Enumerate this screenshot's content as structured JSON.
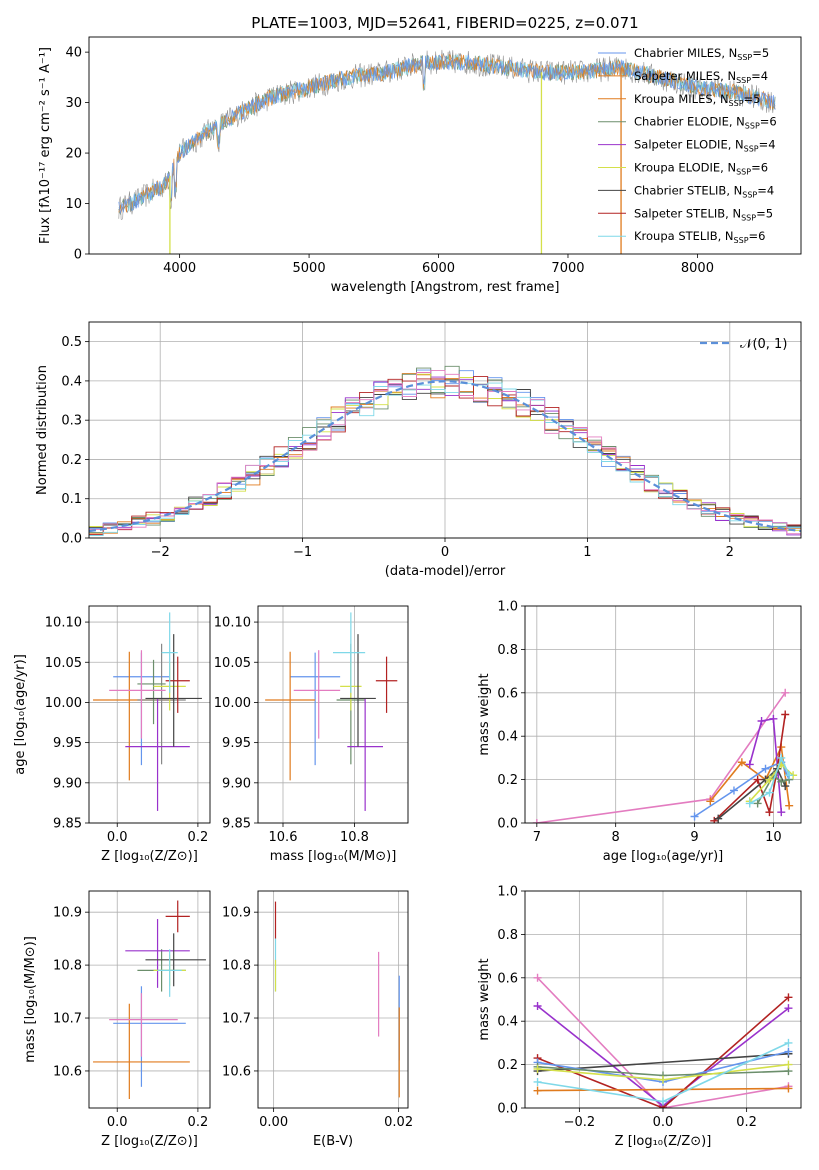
{
  "figure": {
    "title": "PLATE=1003, MJD=52641, FIBERID=0225, z=0.071"
  },
  "colors": [
    "#6495ed",
    "#e07b1e",
    "#e07b1e",
    "#6b8e6b",
    "#9932cc",
    "#d4e04a",
    "#444444",
    "#b22222",
    "#7fd8e8",
    "#e37cc0",
    "#888888"
  ],
  "chart_data": [
    {
      "id": "spectrum",
      "type": "line",
      "title": "PLATE=1003, MJD=52641, FIBERID=0225, z=0.071",
      "xlabel": "wavelength [Angstrom, rest frame]",
      "ylabel": "Flux [fλ10⁻¹⁷ erg cm⁻² s⁻¹ A⁻¹]",
      "xlim": [
        3300,
        8800
      ],
      "ylim": [
        0,
        43
      ],
      "xticks": [
        4000,
        5000,
        6000,
        7000,
        8000
      ],
      "yticks": [
        0,
        10,
        20,
        30,
        40
      ],
      "legend_position": "top-right",
      "legend": [
        {
          "label": "Chabrier MILES, N",
          "sub": "SSP",
          "suffix": "=5",
          "color": "#6495ed"
        },
        {
          "label": "Salpeter MILES, N",
          "sub": "SSP",
          "suffix": "=4",
          "color": "#e07b1e"
        },
        {
          "label": "Kroupa MILES, N",
          "sub": "SSP",
          "suffix": "=5",
          "color": "#e07b1e"
        },
        {
          "label": "Chabrier ELODIE, N",
          "sub": "SSP",
          "suffix": "=6",
          "color": "#6b8e6b"
        },
        {
          "label": "Salpeter ELODIE, N",
          "sub": "SSP",
          "suffix": "=4",
          "color": "#9932cc"
        },
        {
          "label": "Kroupa ELODIE, N",
          "sub": "SSP",
          "suffix": "=6",
          "color": "#d4e04a"
        },
        {
          "label": "Chabrier STELIB, N",
          "sub": "SSP",
          "suffix": "=4",
          "color": "#444444"
        },
        {
          "label": "Salpeter STELIB, N",
          "sub": "SSP",
          "suffix": "=5",
          "color": "#b22222"
        },
        {
          "label": "Kroupa STELIB, N",
          "sub": "SSP",
          "suffix": "=6",
          "color": "#7fd8e8"
        }
      ],
      "continuum": {
        "x": [
          3530,
          3700,
          3900,
          4000,
          4200,
          4400,
          4700,
          5000,
          5300,
          5600,
          5900,
          6200,
          6500,
          6800,
          7100,
          7400,
          7700,
          8000,
          8300,
          8600
        ],
        "y": [
          9,
          11,
          14,
          20,
          24,
          27,
          31,
          33,
          35,
          36,
          38,
          38,
          37,
          36,
          36,
          37,
          35,
          33,
          32,
          30
        ]
      }
    },
    {
      "id": "residuals",
      "type": "histogram",
      "xlabel": "(data-model)/error",
      "ylabel": "Normed distribution",
      "xlim": [
        -2.5,
        2.5
      ],
      "ylim": [
        0,
        0.55
      ],
      "xticks": [
        -2,
        -1,
        0,
        1,
        2
      ],
      "yticks": [
        0.0,
        0.1,
        0.2,
        0.3,
        0.4,
        0.5
      ],
      "legend_position": "top-right",
      "legend": [
        {
          "label": "𝒩(0, 1)",
          "color": "#5b8fd9",
          "style": "dashed"
        }
      ]
    },
    {
      "id": "age-vs-Z",
      "type": "scatter",
      "xlabel": "Z [log₁₀(Z/Z⊙)]",
      "ylabel": "age  [log₁₀(age/yr)]",
      "xlim": [
        -0.07,
        0.23
      ],
      "ylim": [
        9.85,
        10.12
      ],
      "xticks": [
        0.0,
        0.2
      ],
      "yticks": [
        9.85,
        9.9,
        9.95,
        10.0,
        10.05,
        10.1
      ],
      "points": [
        {
          "x": 0.06,
          "y": 10.032,
          "xerr": [
            0.07,
            0.07
          ],
          "yerr": [
            0.11,
            0.03
          ],
          "color": "#6495ed"
        },
        {
          "x": 0.03,
          "y": 10.003,
          "xerr": [
            0.09,
            0.11
          ],
          "yerr": [
            0.1,
            0.06
          ],
          "color": "#e07b1e"
        },
        {
          "x": 0.11,
          "y": 10.003,
          "xerr": [
            0.06,
            0.06
          ],
          "yerr": [
            0.08,
            0.07
          ],
          "color": "#888888"
        },
        {
          "x": 0.09,
          "y": 10.023,
          "xerr": [
            0.04,
            0.03
          ],
          "yerr": [
            0.05,
            0.03
          ],
          "color": "#6b8e6b"
        },
        {
          "x": 0.1,
          "y": 9.945,
          "xerr": [
            0.08,
            0.08
          ],
          "yerr": [
            0.08,
            0.06
          ],
          "color": "#9932cc"
        },
        {
          "x": 0.13,
          "y": 10.02,
          "xerr": [
            0.04,
            0.04
          ],
          "yerr": [
            0.03,
            0.03
          ],
          "color": "#d4e04a"
        },
        {
          "x": 0.14,
          "y": 10.005,
          "xerr": [
            0.07,
            0.07
          ],
          "yerr": [
            0.06,
            0.08
          ],
          "color": "#444444"
        },
        {
          "x": 0.15,
          "y": 10.027,
          "xerr": [
            0.03,
            0.03
          ],
          "yerr": [
            0.04,
            0.03
          ],
          "color": "#b22222"
        },
        {
          "x": 0.13,
          "y": 10.062,
          "xerr": [
            0.02,
            0.02
          ],
          "yerr": [
            0.05,
            0.05
          ],
          "color": "#7fd8e8"
        },
        {
          "x": 0.06,
          "y": 10.015,
          "xerr": [
            0.08,
            0.06
          ],
          "yerr": [
            0.06,
            0.05
          ],
          "color": "#e37cc0"
        }
      ]
    },
    {
      "id": "age-vs-mass",
      "type": "scatter",
      "xlabel": "mass [log₁₀(M/M⊙)]",
      "ylabel": "",
      "xlim": [
        10.53,
        10.95
      ],
      "ylim": [
        9.85,
        10.12
      ],
      "xticks": [
        10.6,
        10.8
      ],
      "yticks": [
        9.85,
        9.9,
        9.95,
        10.0,
        10.05,
        10.1
      ],
      "points": [
        {
          "x": 10.69,
          "y": 10.032,
          "xerr": [
            0.07,
            0.07
          ],
          "yerr": [
            0.11,
            0.03
          ],
          "color": "#6495ed"
        },
        {
          "x": 10.62,
          "y": 10.003,
          "xerr": [
            0.07,
            0.07
          ],
          "yerr": [
            0.1,
            0.06
          ],
          "color": "#e07b1e"
        },
        {
          "x": 10.79,
          "y": 10.003,
          "xerr": [
            0.04,
            0.04
          ],
          "yerr": [
            0.08,
            0.07
          ],
          "color": "#6b8e6b"
        },
        {
          "x": 10.83,
          "y": 9.945,
          "xerr": [
            0.05,
            0.05
          ],
          "yerr": [
            0.08,
            0.06
          ],
          "color": "#9932cc"
        },
        {
          "x": 10.79,
          "y": 10.02,
          "xerr": [
            0.03,
            0.03
          ],
          "yerr": [
            0.03,
            0.03
          ],
          "color": "#d4e04a"
        },
        {
          "x": 10.81,
          "y": 10.005,
          "xerr": [
            0.05,
            0.05
          ],
          "yerr": [
            0.06,
            0.08
          ],
          "color": "#444444"
        },
        {
          "x": 10.89,
          "y": 10.027,
          "xerr": [
            0.03,
            0.03
          ],
          "yerr": [
            0.04,
            0.03
          ],
          "color": "#b22222"
        },
        {
          "x": 10.79,
          "y": 10.062,
          "xerr": [
            0.05,
            0.04
          ],
          "yerr": [
            0.05,
            0.05
          ],
          "color": "#7fd8e8"
        },
        {
          "x": 10.7,
          "y": 10.015,
          "xerr": [
            0.07,
            0.06
          ],
          "yerr": [
            0.06,
            0.05
          ],
          "color": "#e37cc0"
        }
      ]
    },
    {
      "id": "weight-vs-age",
      "type": "line",
      "xlabel": "age  [log₁₀(age/yr)]",
      "ylabel": "mass weight",
      "xlim": [
        6.85,
        10.35
      ],
      "ylim": [
        0,
        1.0
      ],
      "xticks": [
        7,
        8,
        9,
        10
      ],
      "yticks": [
        0.0,
        0.2,
        0.4,
        0.6,
        0.8,
        1.0
      ],
      "series": [
        {
          "color": "#e37cc0",
          "x": [
            7.0,
            9.2,
            10.15
          ],
          "y": [
            0.0,
            0.11,
            0.6
          ]
        },
        {
          "color": "#e07b1e",
          "x": [
            9.2,
            9.6,
            9.9,
            10.1,
            10.2
          ],
          "y": [
            0.1,
            0.28,
            0.2,
            0.35,
            0.08
          ]
        },
        {
          "color": "#6495ed",
          "x": [
            9.0,
            9.5,
            9.9,
            10.1,
            10.2
          ],
          "y": [
            0.03,
            0.15,
            0.25,
            0.28,
            0.2
          ]
        },
        {
          "color": "#9932cc",
          "x": [
            9.7,
            9.85,
            10.0,
            10.1
          ],
          "y": [
            0.27,
            0.47,
            0.48,
            0.05
          ]
        },
        {
          "color": "#b22222",
          "x": [
            9.25,
            9.8,
            9.95,
            10.05,
            10.15
          ],
          "y": [
            0.01,
            0.2,
            0.05,
            0.25,
            0.5
          ]
        },
        {
          "color": "#444444",
          "x": [
            9.3,
            9.9,
            10.05,
            10.15
          ],
          "y": [
            0.02,
            0.2,
            0.25,
            0.17
          ]
        },
        {
          "color": "#6b8e6b",
          "x": [
            9.8,
            10.0,
            10.1,
            10.2
          ],
          "y": [
            0.09,
            0.22,
            0.19,
            0.2
          ]
        },
        {
          "color": "#d4e04a",
          "x": [
            9.7,
            9.95,
            10.1,
            10.25
          ],
          "y": [
            0.1,
            0.2,
            0.27,
            0.22
          ]
        },
        {
          "color": "#7fd8e8",
          "x": [
            9.7,
            9.95,
            10.1,
            10.2
          ],
          "y": [
            0.09,
            0.14,
            0.3,
            0.22
          ]
        }
      ]
    },
    {
      "id": "mass-vs-Z",
      "type": "scatter",
      "xlabel": "Z [log₁₀(Z/Z⊙)]",
      "ylabel": "mass [log₁₀(M/M⊙)]",
      "xlim": [
        -0.07,
        0.23
      ],
      "ylim": [
        10.53,
        10.94
      ],
      "xticks": [
        0.0,
        0.2
      ],
      "yticks": [
        10.6,
        10.7,
        10.8,
        10.9
      ],
      "points": [
        {
          "x": 0.06,
          "y": 10.69,
          "xerr": [
            0.07,
            0.11
          ],
          "yerr": [
            0.12,
            0.07
          ],
          "color": "#6495ed"
        },
        {
          "x": 0.03,
          "y": 10.617,
          "xerr": [
            0.09,
            0.15
          ],
          "yerr": [
            0.07,
            0.11
          ],
          "color": "#e07b1e"
        },
        {
          "x": 0.11,
          "y": 10.79,
          "xerr": [
            0.06,
            0.06
          ],
          "yerr": [
            0.04,
            0.04
          ],
          "color": "#6b8e6b"
        },
        {
          "x": 0.1,
          "y": 10.827,
          "xerr": [
            0.08,
            0.08
          ],
          "yerr": [
            0.07,
            0.06
          ],
          "color": "#9932cc"
        },
        {
          "x": 0.13,
          "y": 10.79,
          "xerr": [
            0.04,
            0.04
          ],
          "yerr": [
            0.03,
            0.03
          ],
          "color": "#d4e04a"
        },
        {
          "x": 0.14,
          "y": 10.81,
          "xerr": [
            0.07,
            0.08
          ],
          "yerr": [
            0.05,
            0.05
          ],
          "color": "#444444"
        },
        {
          "x": 0.15,
          "y": 10.892,
          "xerr": [
            0.03,
            0.03
          ],
          "yerr": [
            0.03,
            0.03
          ],
          "color": "#b22222"
        },
        {
          "x": 0.13,
          "y": 10.79,
          "xerr": [
            0.03,
            0.03
          ],
          "yerr": [
            0.05,
            0.04
          ],
          "color": "#7fd8e8"
        },
        {
          "x": 0.06,
          "y": 10.697,
          "xerr": [
            0.08,
            0.09
          ],
          "yerr": [
            0.07,
            0.05
          ],
          "color": "#e37cc0"
        }
      ]
    },
    {
      "id": "mass-vs-ebv",
      "type": "scatter",
      "xlabel": "E(B-V)",
      "ylabel": "",
      "xlim": [
        -0.0025,
        0.0215
      ],
      "ylim": [
        10.53,
        10.94
      ],
      "xticks": [
        0.0,
        0.02
      ],
      "yticks": [
        10.6,
        10.7,
        10.8,
        10.9
      ],
      "points": [
        {
          "x": 0.0003,
          "y": 10.89,
          "xerr": [
            0,
            0
          ],
          "yerr": [
            0.04,
            0.03
          ],
          "color": "#b22222"
        },
        {
          "x": 0.0003,
          "y": 10.8,
          "xerr": [
            0,
            0
          ],
          "yerr": [
            0.05,
            0.05
          ],
          "color": "#7fd8e8"
        },
        {
          "x": 0.0003,
          "y": 10.78,
          "xerr": [
            0,
            0
          ],
          "yerr": [
            0.03,
            0.03
          ],
          "color": "#d4e04a"
        },
        {
          "x": 0.0168,
          "y": 10.745,
          "xerr": [
            0,
            0
          ],
          "yerr": [
            0.08,
            0.08
          ],
          "color": "#e37cc0"
        },
        {
          "x": 0.0201,
          "y": 10.7,
          "xerr": [
            0,
            0
          ],
          "yerr": [
            0.08,
            0.08
          ],
          "color": "#6495ed"
        },
        {
          "x": 0.0201,
          "y": 10.63,
          "xerr": [
            0,
            0
          ],
          "yerr": [
            0.08,
            0.09
          ],
          "color": "#e07b1e"
        }
      ]
    },
    {
      "id": "weight-vs-Z",
      "type": "line",
      "xlabel": "Z [log₁₀(Z/Z⊙)]",
      "ylabel": "mass weight",
      "xlim": [
        -0.33,
        0.33
      ],
      "ylim": [
        0,
        1.0
      ],
      "xticks": [
        -0.2,
        0.0,
        0.2
      ],
      "yticks": [
        0.0,
        0.2,
        0.4,
        0.6,
        0.8,
        1.0
      ],
      "series": [
        {
          "color": "#e37cc0",
          "x": [
            -0.3,
            0.0,
            0.3
          ],
          "y": [
            0.6,
            0.0,
            0.1
          ]
        },
        {
          "color": "#9932cc",
          "x": [
            -0.3,
            0.0,
            0.3
          ],
          "y": [
            0.47,
            0.01,
            0.46
          ]
        },
        {
          "color": "#b22222",
          "x": [
            -0.3,
            0.0,
            0.3
          ],
          "y": [
            0.23,
            0.0,
            0.51
          ]
        },
        {
          "color": "#444444",
          "x": [
            -0.3,
            0.3
          ],
          "y": [
            0.17,
            0.25
          ]
        },
        {
          "color": "#e07b1e",
          "x": [
            -0.3,
            0.3
          ],
          "y": [
            0.08,
            0.09
          ]
        },
        {
          "color": "#6495ed",
          "x": [
            -0.3,
            0.0,
            0.3
          ],
          "y": [
            0.21,
            0.12,
            0.26
          ]
        },
        {
          "color": "#6b8e6b",
          "x": [
            -0.3,
            0.0,
            0.3
          ],
          "y": [
            0.19,
            0.15,
            0.17
          ]
        },
        {
          "color": "#d4e04a",
          "x": [
            -0.3,
            0.0,
            0.3
          ],
          "y": [
            0.18,
            0.13,
            0.2
          ]
        },
        {
          "color": "#7fd8e8",
          "x": [
            -0.3,
            0.0,
            0.3
          ],
          "y": [
            0.12,
            0.03,
            0.3
          ]
        }
      ]
    }
  ]
}
